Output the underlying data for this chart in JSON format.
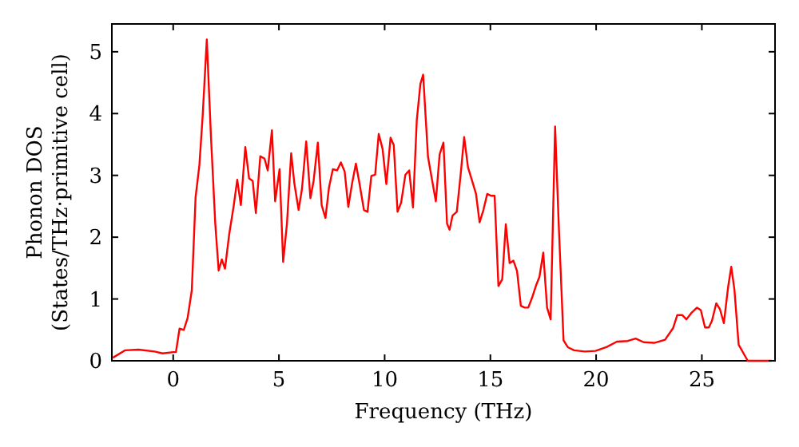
{
  "chart_data": {
    "type": "line",
    "xlabel": "Frequency (THz)",
    "ylabel": "Phonon DOS\n(States/THz·primitive cell)",
    "xlim": [
      -2.9,
      28.46
    ],
    "ylim": [
      0,
      5.45
    ],
    "xticks": [
      0,
      5,
      10,
      15,
      20,
      25
    ],
    "yticks": [
      0,
      1,
      2,
      3,
      4,
      5
    ],
    "grid": false,
    "marker": "none",
    "line_style": "solid",
    "series": [
      {
        "color": "#ff0000",
        "x": [
          -2.85,
          -2.27,
          -1.64,
          -0.88,
          -0.5,
          0,
          0.13,
          0.3,
          0.5,
          0.68,
          0.88,
          1.06,
          1.24,
          1.39,
          1.59,
          1.79,
          1.99,
          2.15,
          2.3,
          2.45,
          2.65,
          2.85,
          3.03,
          3.2,
          3.41,
          3.59,
          3.76,
          3.91,
          4.12,
          4.32,
          4.47,
          4.67,
          4.82,
          5.03,
          5.2,
          5.38,
          5.58,
          5.73,
          5.93,
          6.09,
          6.29,
          6.49,
          6.64,
          6.84,
          7.02,
          7.2,
          7.37,
          7.55,
          7.75,
          7.93,
          8.11,
          8.28,
          8.46,
          8.64,
          8.81,
          9.02,
          9.19,
          9.37,
          9.55,
          9.72,
          9.9,
          10.08,
          10.28,
          10.43,
          10.61,
          10.78,
          10.98,
          11.16,
          11.34,
          11.52,
          11.69,
          11.82,
          12.05,
          12.25,
          12.42,
          12.6,
          12.78,
          12.95,
          13.07,
          13.21,
          13.41,
          13.59,
          13.76,
          13.94,
          14.12,
          14.32,
          14.49,
          14.67,
          14.85,
          15.03,
          15.2,
          15.38,
          15.56,
          15.73,
          15.91,
          16.09,
          16.26,
          16.44,
          16.62,
          16.79,
          16.97,
          17.15,
          17.32,
          17.5,
          17.68,
          17.85,
          18.06,
          18.23,
          18.46,
          18.66,
          18.96,
          19.47,
          19.97,
          20.48,
          20.98,
          21.49,
          21.87,
          22.25,
          22.75,
          23.26,
          23.64,
          23.84,
          24.07,
          24.27,
          24.52,
          24.77,
          24.95,
          25.15,
          25.33,
          25.48,
          25.68,
          25.86,
          26.04,
          26.24,
          26.39,
          26.54,
          26.74,
          27.17,
          28.3
        ],
        "values": [
          0.05,
          0.17,
          0.18,
          0.15,
          0.12,
          0.14,
          0.14,
          0.52,
          0.5,
          0.69,
          1.14,
          2.65,
          3.17,
          3.94,
          5.2,
          3.6,
          2.22,
          1.46,
          1.64,
          1.49,
          2.05,
          2.48,
          2.93,
          2.52,
          3.46,
          2.95,
          2.91,
          2.39,
          3.31,
          3.27,
          3.08,
          3.73,
          2.58,
          3.1,
          1.6,
          2.22,
          3.36,
          2.87,
          2.44,
          2.78,
          3.55,
          2.63,
          2.91,
          3.53,
          2.52,
          2.31,
          2.81,
          3.1,
          3.08,
          3.21,
          3.06,
          2.49,
          2.87,
          3.19,
          2.87,
          2.44,
          2.41,
          2.99,
          3.01,
          3.67,
          3.43,
          2.86,
          3.61,
          3.49,
          2.41,
          2.56,
          3.01,
          3.08,
          2.48,
          3.9,
          4.48,
          4.63,
          3.3,
          2.91,
          2.58,
          3.34,
          3.53,
          2.22,
          2.12,
          2.35,
          2.41,
          3.0,
          3.62,
          3.13,
          2.93,
          2.7,
          2.24,
          2.44,
          2.7,
          2.67,
          2.67,
          1.21,
          1.32,
          2.21,
          1.58,
          1.62,
          1.45,
          0.89,
          0.86,
          0.86,
          1.02,
          1.21,
          1.36,
          1.75,
          0.86,
          0.67,
          3.79,
          2.22,
          0.33,
          0.22,
          0.17,
          0.15,
          0.16,
          0.22,
          0.31,
          0.32,
          0.36,
          0.3,
          0.29,
          0.34,
          0.53,
          0.74,
          0.74,
          0.67,
          0.78,
          0.86,
          0.82,
          0.54,
          0.54,
          0.65,
          0.93,
          0.83,
          0.61,
          1.19,
          1.52,
          1.15,
          0.26,
          0,
          0
        ]
      }
    ]
  }
}
